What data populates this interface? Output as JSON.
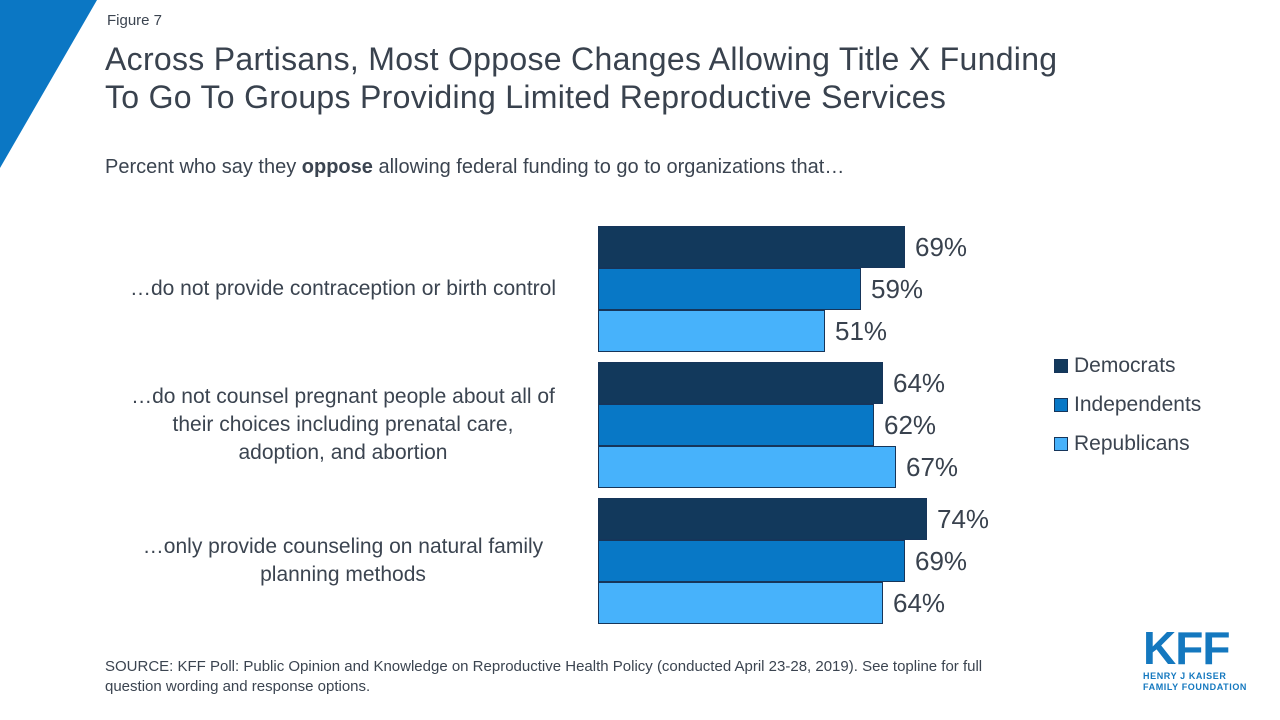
{
  "figure_label": "Figure 7",
  "title": "Across Partisans, Most Oppose Changes Allowing Title X Funding\nTo Go To Groups Providing Limited Reproductive Services",
  "subtitle": {
    "prefix": "Percent who say they ",
    "bold": "oppose",
    "suffix": " allowing federal funding to go to organizations that…"
  },
  "chart_data": {
    "type": "bar",
    "orientation": "horizontal",
    "grouped": true,
    "categories": [
      "…do not provide contraception or birth control",
      "…do not counsel pregnant people about all of\ntheir choices including prenatal care,\nadoption, and abortion",
      "…only provide counseling on natural family\nplanning methods"
    ],
    "series": [
      {
        "name": "Democrats",
        "color": "#12395c",
        "values": [
          69,
          64,
          74
        ]
      },
      {
        "name": "Independents",
        "color": "#0878c6",
        "values": [
          59,
          62,
          69
        ]
      },
      {
        "name": "Republicans",
        "color": "#47b2fb",
        "values": [
          51,
          67,
          64
        ]
      }
    ],
    "value_suffix": "%",
    "xlim": [
      0,
      100
    ],
    "grid": false,
    "legend_position": "right",
    "data_labels": true
  },
  "colors": {
    "bar_border": "#16355a",
    "text": "#3b4450",
    "accent_triangle": "#0b77c4",
    "accent_triangle_dark": "#12395c",
    "logo_blue": "#1478bf"
  },
  "source_note": "SOURCE: KFF Poll: Public Opinion and Knowledge on Reproductive Health Policy (conducted April 23-28, 2019). See topline for full\nquestion wording and response options.",
  "logo": {
    "main": "KFF",
    "line1": "HENRY J KAISER",
    "line2": "FAMILY FOUNDATION"
  }
}
